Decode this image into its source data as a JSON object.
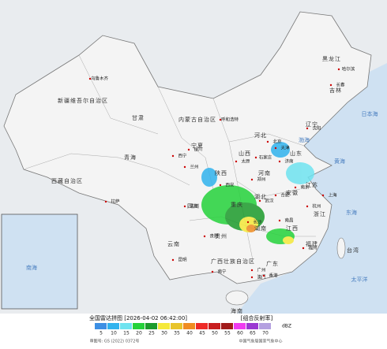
{
  "title": "全国雷达拼图 [2026-04-02 06:42:00]",
  "product": "[组合反射率]",
  "unit": "dBZ",
  "legend": {
    "values": [
      5,
      10,
      15,
      20,
      25,
      30,
      35,
      40,
      45,
      50,
      55,
      60,
      65,
      70
    ],
    "colors": [
      "#3d8fe4",
      "#31b3ee",
      "#6fe3f0",
      "#25d23b",
      "#1c9b2c",
      "#f5e93a",
      "#e8c42b",
      "#f08c21",
      "#ee2a27",
      "#c81e1f",
      "#a11a1a",
      "#ef3cf0",
      "#9a38d2",
      "#b4a0e0"
    ]
  },
  "footer": {
    "approval": "审图号: GS (2022) 0372号",
    "source": "中国气象局国家气象中心"
  },
  "regions": [
    "新疆维吾尔自治区",
    "西藏自治区",
    "青海",
    "甘肃",
    "内蒙古自治区",
    "黑龙江",
    "吉林",
    "辽宁",
    "河北",
    "山西",
    "陕西",
    "宁夏",
    "四川",
    "重庆",
    "贵州",
    "云南",
    "广西壮族自治区",
    "广东",
    "湖南",
    "湖北",
    "河南",
    "山东",
    "江苏",
    "安徽",
    "浙江",
    "江西",
    "福建",
    "台湾",
    "海南"
  ],
  "cities": [
    "乌鲁木齐",
    "拉萨",
    "西宁",
    "兰州",
    "成都",
    "昆明",
    "贵阳",
    "南宁",
    "广州",
    "长沙",
    "武汉",
    "郑州",
    "石家庄",
    "太原",
    "西安",
    "银川",
    "呼和浩特",
    "哈尔滨",
    "长春",
    "沈阳",
    "济南",
    "南京",
    "合肥",
    "杭州",
    "南昌",
    "福州",
    "北京",
    "天津",
    "上海",
    "香港",
    "澳门"
  ],
  "seas": [
    "日本海",
    "黄海",
    "东海",
    "太平洋",
    "南海",
    "渤海"
  ]
}
